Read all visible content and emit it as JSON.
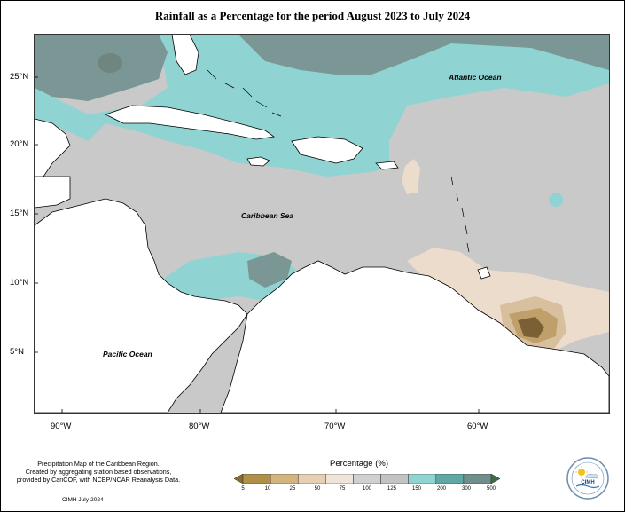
{
  "title": "Rainfall as a Percentage for the period August 2023 to July 2024",
  "map_labels": {
    "atlantic": "Atlantic Ocean",
    "caribbean": "Caribbean Sea",
    "pacific": "Pacific Ocean"
  },
  "lat_ticks": [
    "25°N",
    "20°N",
    "15°N",
    "10°N",
    "5°N"
  ],
  "lon_ticks": [
    "90°W",
    "80°W",
    "70°W",
    "60°W"
  ],
  "footer": {
    "line1": "Precipitation Map of the Caribbean Region.",
    "line2": "Created by aggregating station based observations,",
    "line3": "provided by CariCOF, with NCEP/NCAR Reanalysis Data.",
    "date": "CIMH July-2024"
  },
  "legend": {
    "title": "Percentage (%)",
    "labels": [
      "5",
      "10",
      "25",
      "50",
      "75",
      "100",
      "125",
      "150",
      "200",
      "300",
      "500"
    ],
    "colors": [
      "#8c6b2c",
      "#b08f48",
      "#d1b47e",
      "#e6cfb3",
      "#f0e4d8",
      "#d0d0d0",
      "#c3c3c3",
      "#8fd4d2",
      "#5fa8a6",
      "#6e8f8c",
      "#3f6b45"
    ]
  },
  "logo": {
    "text": "CIMH",
    "icon": "cimh-logo-icon"
  },
  "colors": {
    "land": "#ffffff",
    "normal": "#c9c9c9",
    "wet": "#8fd4d2",
    "very_wet": "#7a9695",
    "dry": "#ecdccb",
    "very_dry": "#a98a52",
    "extreme_dry": "#7b6035"
  }
}
